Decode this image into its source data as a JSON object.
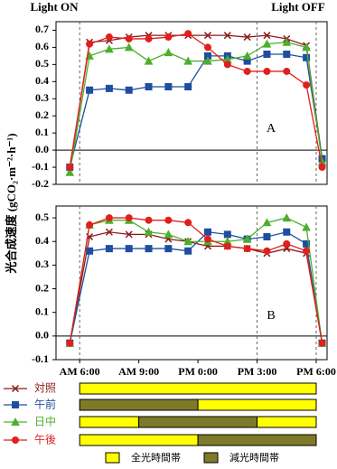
{
  "chart_data": [
    {
      "type": "line",
      "panel_label": "A",
      "annotations": [
        "Light ON",
        "Light OFF"
      ],
      "ylabel": "光合成速度 (gCO₂·m⁻²·h⁻¹)",
      "x": [
        5.5,
        6.5,
        7.5,
        8.5,
        9.5,
        10.5,
        11.5,
        12.5,
        13.5,
        14.5,
        15.5,
        16.5,
        17.5,
        18.3
      ],
      "xlim": [
        4.8,
        18.55
      ],
      "dashed_x": [
        6,
        15,
        18
      ],
      "ylim": [
        -0.2,
        0.75
      ],
      "yticks": [
        -0.2,
        -0.1,
        {
          "value": 0,
          "label": "0.0"
        },
        0.1,
        0.2,
        0.3,
        0.4,
        0.5,
        0.6,
        0.7
      ],
      "series": [
        {
          "name": "対照",
          "color": "#8b1a1a",
          "marker": "cross",
          "values": [
            -0.1,
            0.63,
            0.64,
            0.66,
            0.67,
            0.67,
            0.67,
            0.67,
            0.67,
            0.66,
            0.67,
            0.65,
            0.61,
            -0.05
          ]
        },
        {
          "name": "午前",
          "color": "#1f4e9f",
          "marker": "square",
          "values": [
            -0.1,
            0.35,
            0.36,
            0.35,
            0.37,
            0.37,
            0.37,
            0.55,
            0.55,
            0.52,
            0.56,
            0.56,
            0.54,
            -0.05
          ]
        },
        {
          "name": "日中",
          "color": "#4caf2a",
          "marker": "triangle",
          "values": [
            -0.13,
            0.55,
            0.59,
            0.6,
            0.52,
            0.57,
            0.52,
            0.52,
            0.53,
            0.55,
            0.62,
            0.63,
            0.6,
            -0.07
          ]
        },
        {
          "name": "午後",
          "color": "#e21f1f",
          "marker": "circle",
          "values": [
            -0.1,
            0.62,
            0.66,
            0.65,
            0.65,
            0.66,
            0.68,
            0.6,
            0.5,
            0.46,
            0.46,
            0.46,
            0.38,
            -0.1
          ]
        }
      ]
    },
    {
      "type": "line",
      "panel_label": "B",
      "x": [
        5.5,
        6.5,
        7.5,
        8.5,
        9.5,
        10.5,
        11.5,
        12.5,
        13.5,
        14.5,
        15.5,
        16.5,
        17.5,
        18.3
      ],
      "xlim": [
        4.8,
        18.55
      ],
      "dashed_x": [
        6,
        15,
        18
      ],
      "xticks": [
        {
          "value": 6,
          "label": "AM 6:00"
        },
        {
          "value": 9,
          "label": "AM 9:00"
        },
        {
          "value": 12,
          "label": "PM 0:00"
        },
        {
          "value": 15,
          "label": "PM 3:00"
        },
        {
          "value": 18,
          "label": "PM 6:00"
        }
      ],
      "ylim": [
        -0.1,
        0.55
      ],
      "yticks": [
        -0.1,
        {
          "value": 0,
          "label": "0.0"
        },
        0.1,
        0.2,
        0.3,
        0.4,
        0.5
      ],
      "series": [
        {
          "color": "#8b1a1a",
          "marker": "cross",
          "values": [
            -0.03,
            0.42,
            0.44,
            0.43,
            0.43,
            0.41,
            0.4,
            0.38,
            0.38,
            0.37,
            0.35,
            0.37,
            0.35,
            -0.03
          ]
        },
        {
          "color": "#1f4e9f",
          "marker": "square",
          "values": [
            -0.03,
            0.36,
            0.37,
            0.37,
            0.37,
            0.37,
            0.36,
            0.44,
            0.43,
            0.41,
            0.42,
            0.44,
            0.39,
            -0.03
          ]
        },
        {
          "color": "#4caf2a",
          "marker": "triangle",
          "values": [
            -0.03,
            0.47,
            0.49,
            0.49,
            0.44,
            0.43,
            0.4,
            0.4,
            0.4,
            0.41,
            0.48,
            0.5,
            0.46,
            -0.03
          ]
        },
        {
          "color": "#e21f1f",
          "marker": "circle",
          "values": [
            -0.03,
            0.47,
            0.5,
            0.5,
            0.49,
            0.49,
            0.48,
            0.41,
            0.38,
            0.37,
            0.36,
            0.39,
            0.36,
            -0.03
          ]
        }
      ]
    }
  ],
  "schedule": {
    "rows": [
      [
        {
          "from": 6,
          "to": 18,
          "color": "#ffff00"
        }
      ],
      [
        {
          "from": 6,
          "to": 12,
          "color": "#7f7a2a"
        },
        {
          "from": 12,
          "to": 18,
          "color": "#ffff00"
        }
      ],
      [
        {
          "from": 6,
          "to": 9,
          "color": "#ffff00"
        },
        {
          "from": 9,
          "to": 15,
          "color": "#7f7a2a"
        },
        {
          "from": 15,
          "to": 18,
          "color": "#ffff00"
        }
      ],
      [
        {
          "from": 6,
          "to": 12,
          "color": "#ffff00"
        },
        {
          "from": 12,
          "to": 18,
          "color": "#7f7a2a"
        }
      ]
    ],
    "legend": [
      {
        "label": "全光時間帯",
        "color": "#ffff00"
      },
      {
        "label": "減光時間帯",
        "color": "#7f7a2a"
      }
    ]
  }
}
